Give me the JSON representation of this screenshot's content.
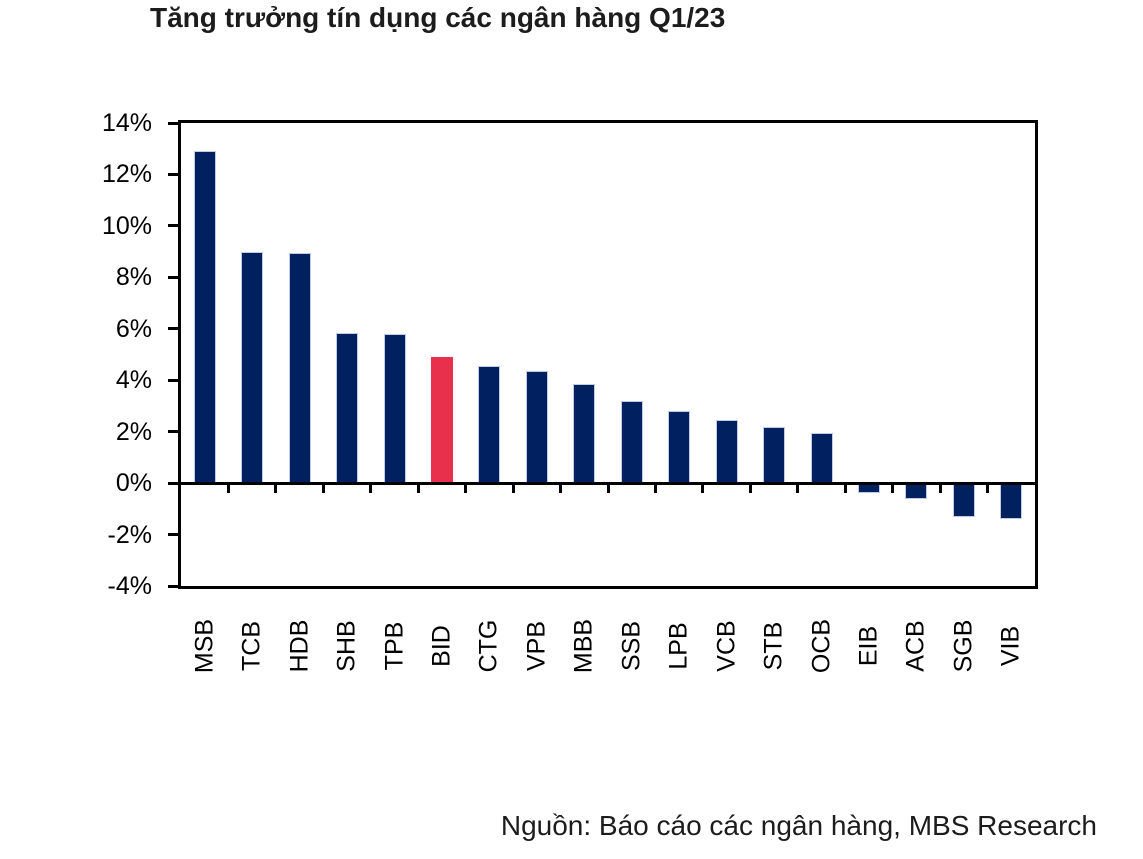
{
  "title": "Tăng trưởng tín dụng các ngân hàng Q1/23",
  "source": "Nguồn: Báo cáo các ngân hàng, MBS Research",
  "chart_data": {
    "type": "bar",
    "title": "Tăng trưởng tín dụng các ngân hàng Q1/23",
    "categories": [
      "MSB",
      "TCB",
      "HDB",
      "SHB",
      "TPB",
      "BID",
      "CTG",
      "VPB",
      "MBB",
      "SSB",
      "LPB",
      "VCB",
      "STB",
      "OCB",
      "EIB",
      "ACB",
      "SGB",
      "VIB"
    ],
    "values": [
      12.9,
      9.0,
      8.95,
      5.85,
      5.8,
      4.9,
      4.55,
      4.35,
      3.85,
      3.2,
      2.8,
      2.45,
      2.2,
      1.95,
      -0.4,
      -0.6,
      -1.3,
      -1.4
    ],
    "highlight_category": "BID",
    "unit": "%",
    "xlabel": "",
    "ylabel": "",
    "ylim": [
      -4,
      14
    ],
    "ytick_step": 2,
    "ytick_labels": [
      "14%",
      "12%",
      "10%",
      "8%",
      "6%",
      "4%",
      "2%",
      "0%",
      "-2%",
      "-4%"
    ],
    "ytick_values": [
      14,
      12,
      10,
      8,
      6,
      4,
      2,
      0,
      -2,
      -4
    ],
    "grid": false,
    "legend": false,
    "colors": {
      "bar": "#002060",
      "highlight": "#e8304c",
      "bar_border": "#c3cbe3",
      "axis": "#000000",
      "text": "#000000"
    }
  }
}
